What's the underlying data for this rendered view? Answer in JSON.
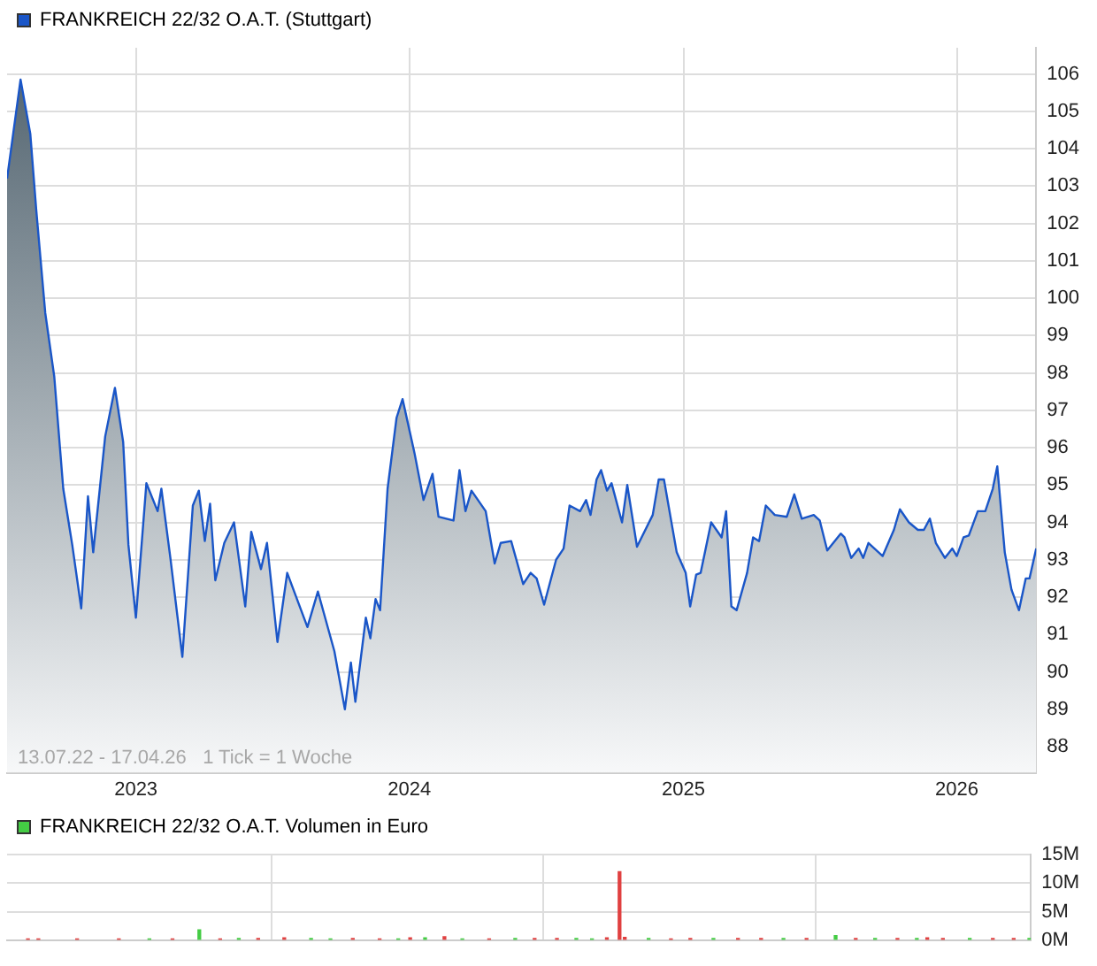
{
  "chart_data": [
    {
      "type": "area",
      "legend": "top left",
      "grid": true,
      "xlim": [
        "2022-07-13",
        "2026-04-17"
      ],
      "xticks": [
        "2023",
        "2024",
        "2025",
        "2026"
      ],
      "ylim": [
        87.3,
        106.7
      ],
      "yticks": [
        88,
        89,
        90,
        91,
        92,
        93,
        94,
        95,
        96,
        97,
        98,
        99,
        100,
        101,
        102,
        103,
        104,
        105,
        106
      ],
      "annotations": [
        "13.07.22 - 17.04.26   1 Tick = 1 Woche"
      ],
      "x": [
        "2022-07-13",
        "2022-07-31",
        "2022-08-13",
        "2022-08-21",
        "2022-09-02",
        "2022-09-14",
        "2022-09-26",
        "2022-10-08",
        "2022-10-20",
        "2022-10-29",
        "2022-11-05",
        "2022-11-21",
        "2022-12-04",
        "2022-12-15",
        "2022-12-22",
        "2023-01-01",
        "2023-01-15",
        "2023-01-30",
        "2023-02-04",
        "2023-02-16",
        "2023-03-04",
        "2023-03-18",
        "2023-03-26",
        "2023-04-03",
        "2023-04-10",
        "2023-04-17",
        "2023-04-29",
        "2023-05-12",
        "2023-05-27",
        "2023-06-04",
        "2023-06-17",
        "2023-06-25",
        "2023-07-09",
        "2023-07-22",
        "2023-08-18",
        "2023-09-01",
        "2023-09-23",
        "2023-10-07",
        "2023-10-15",
        "2023-10-21",
        "2023-11-04",
        "2023-11-10",
        "2023-11-17",
        "2023-11-23",
        "2023-12-03",
        "2023-12-15",
        "2023-12-23",
        "2024-01-08",
        "2024-01-20",
        "2024-02-01",
        "2024-02-09",
        "2024-02-29",
        "2024-03-08",
        "2024-03-16",
        "2024-03-24",
        "2024-04-12",
        "2024-04-24",
        "2024-05-02",
        "2024-05-16",
        "2024-06-01",
        "2024-06-11",
        "2024-06-19",
        "2024-06-29",
        "2024-07-15",
        "2024-07-25",
        "2024-08-02",
        "2024-08-16",
        "2024-08-24",
        "2024-08-30",
        "2024-09-07",
        "2024-09-13",
        "2024-09-21",
        "2024-09-27",
        "2024-10-11",
        "2024-10-18",
        "2024-10-31",
        "2024-11-21",
        "2024-11-29",
        "2024-12-06",
        "2024-12-23",
        "2025-01-04",
        "2025-01-10",
        "2025-01-18",
        "2025-01-24",
        "2025-02-07",
        "2025-02-21",
        "2025-02-27",
        "2025-03-06",
        "2025-03-13",
        "2025-03-27",
        "2025-04-04",
        "2025-04-12",
        "2025-04-21",
        "2025-05-03",
        "2025-05-19",
        "2025-05-29",
        "2025-06-08",
        "2025-06-24",
        "2025-07-02",
        "2025-07-12",
        "2025-07-30",
        "2025-08-04",
        "2025-08-13",
        "2025-08-23",
        "2025-08-29",
        "2025-09-05",
        "2025-09-24",
        "2025-10-09",
        "2025-10-17",
        "2025-10-29",
        "2025-11-10",
        "2025-11-18",
        "2025-11-26",
        "2025-12-04",
        "2025-12-16",
        "2025-12-26",
        "2026-01-01",
        "2026-01-10",
        "2026-01-17",
        "2026-01-29",
        "2026-02-08",
        "2026-02-18",
        "2026-02-24",
        "2026-03-06",
        "2026-03-15",
        "2026-03-25",
        "2026-04-03",
        "2026-04-08",
        "2026-04-17"
      ],
      "series": [
        {
          "name": "FRANKREICH 22/32 O.A.T. (Stuttgart)",
          "color": "#1a56c8",
          "values": [
            103.2,
            105.85,
            104.4,
            102.35,
            99.6,
            97.9,
            94.9,
            93.4,
            91.7,
            94.7,
            93.2,
            96.3,
            97.6,
            96.15,
            93.4,
            91.45,
            95.05,
            94.3,
            94.9,
            93.05,
            90.4,
            94.45,
            94.85,
            93.5,
            94.5,
            92.45,
            93.45,
            94.0,
            91.75,
            93.75,
            92.75,
            93.45,
            90.8,
            92.65,
            91.2,
            92.15,
            90.55,
            89.0,
            90.25,
            89.2,
            91.45,
            90.9,
            91.95,
            91.65,
            94.9,
            96.8,
            97.3,
            95.85,
            94.6,
            95.3,
            94.15,
            94.05,
            95.4,
            94.3,
            94.85,
            94.3,
            92.9,
            93.45,
            93.5,
            92.35,
            92.65,
            92.5,
            91.8,
            93.0,
            93.3,
            94.45,
            94.3,
            94.6,
            94.2,
            95.15,
            95.4,
            94.85,
            95.05,
            94.0,
            95.0,
            93.35,
            94.2,
            95.15,
            95.15,
            93.2,
            92.65,
            91.75,
            92.6,
            92.65,
            94.0,
            93.6,
            94.3,
            91.75,
            91.65,
            92.65,
            93.6,
            93.5,
            94.45,
            94.2,
            94.15,
            94.75,
            94.1,
            94.2,
            94.05,
            93.25,
            93.7,
            93.6,
            93.05,
            93.3,
            93.05,
            93.45,
            93.1,
            93.8,
            94.35,
            94.0,
            93.8,
            93.8,
            94.1,
            93.45,
            93.05,
            93.3,
            93.1,
            93.6,
            93.65,
            94.3,
            94.3,
            94.9,
            95.5,
            93.2,
            92.2,
            91.65,
            92.5,
            92.5,
            93.3
          ]
        }
      ]
    },
    {
      "type": "bar",
      "legend": "top left",
      "grid": true,
      "tick_labels": "y",
      "xlim": [
        "2022-07-13",
        "2026-04-17"
      ],
      "xticks": [
        "2023",
        "2024",
        "2025",
        "2026"
      ],
      "ylim": [
        0,
        15
      ],
      "yticks": [
        {
          "value": 0,
          "label": "0M"
        },
        {
          "value": 5,
          "label": "5M"
        },
        {
          "value": 10,
          "label": "10M"
        },
        {
          "value": 15,
          "label": "15M"
        }
      ],
      "x": [
        "2022-08-10",
        "2022-08-24",
        "2022-10-15",
        "2022-12-10",
        "2023-01-20",
        "2023-02-20",
        "2023-03-28",
        "2023-04-25",
        "2023-05-20",
        "2023-06-15",
        "2023-07-20",
        "2023-08-25",
        "2023-09-20",
        "2023-10-20",
        "2023-11-25",
        "2023-12-20",
        "2024-01-05",
        "2024-01-25",
        "2024-02-20",
        "2024-03-15",
        "2024-04-20",
        "2024-05-25",
        "2024-06-20",
        "2024-07-20",
        "2024-08-15",
        "2024-09-05",
        "2024-09-25",
        "2024-10-12",
        "2024-10-19",
        "2024-11-20",
        "2024-12-20",
        "2025-01-15",
        "2025-02-15",
        "2025-03-20",
        "2025-04-20",
        "2025-05-20",
        "2025-06-20",
        "2025-07-29",
        "2025-08-25",
        "2025-09-20",
        "2025-10-20",
        "2025-11-15",
        "2025-11-29",
        "2025-12-20",
        "2026-01-25",
        "2026-02-25",
        "2026-03-25",
        "2026-04-15"
      ],
      "series": [
        {
          "name": "FRANKREICH 22/32 O.A.T. Volumen in Euro",
          "color": "#44cc44",
          "values": [
            0.2,
            0.2,
            0.2,
            0.2,
            0.2,
            0.2,
            1.8,
            0.2,
            0.3,
            0.3,
            0.4,
            0.3,
            0.2,
            0.3,
            0.2,
            0.2,
            0.4,
            0.4,
            0.6,
            0.2,
            0.2,
            0.3,
            0.3,
            0.3,
            0.3,
            0.2,
            0.4,
            12,
            0.5,
            0.3,
            0.2,
            0.3,
            0.3,
            0.3,
            0.3,
            0.3,
            0.3,
            0.8,
            0.3,
            0.3,
            0.3,
            0.3,
            0.4,
            0.3,
            0.3,
            0.3,
            0.3,
            0.3
          ],
          "colors": [
            "#e04040",
            "#e04040",
            "#e04040",
            "#e04040",
            "#44cc44",
            "#e04040",
            "#44cc44",
            "#e04040",
            "#44cc44",
            "#e04040",
            "#e04040",
            "#44cc44",
            "#44cc44",
            "#e04040",
            "#e04040",
            "#44cc44",
            "#e04040",
            "#44cc44",
            "#e04040",
            "#44cc44",
            "#e04040",
            "#44cc44",
            "#e04040",
            "#e04040",
            "#44cc44",
            "#44cc44",
            "#e04040",
            "#e04040",
            "#e04040",
            "#44cc44",
            "#e04040",
            "#e04040",
            "#44cc44",
            "#e04040",
            "#e04040",
            "#44cc44",
            "#e04040",
            "#44cc44",
            "#e04040",
            "#44cc44",
            "#e04040",
            "#44cc44",
            "#e04040",
            "#e04040",
            "#44cc44",
            "#e04040",
            "#e04040",
            "#44cc44"
          ]
        }
      ]
    }
  ]
}
